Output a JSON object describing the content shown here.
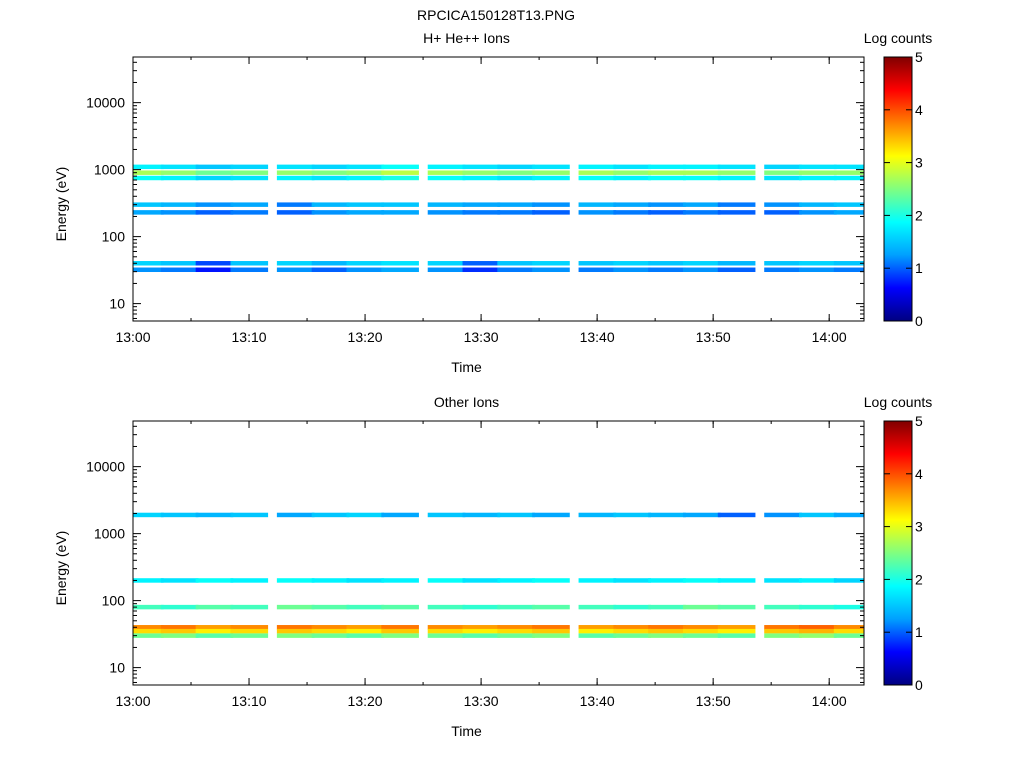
{
  "figure": {
    "title": "RPCICA150128T13.PNG"
  },
  "colormap": {
    "stops": [
      "#000080",
      "#0000ff",
      "#00a0ff",
      "#00ffff",
      "#80ff80",
      "#ffff00",
      "#ff8000",
      "#ff0000",
      "#800000"
    ]
  },
  "chart_data": [
    {
      "type": "heatmap",
      "title": "H+ He++ Ions",
      "xlabel": "Time",
      "ylabel": "Energy (eV)",
      "colorbar_label": "Log counts",
      "x_ticks": [
        "13:00",
        "13:10",
        "13:20",
        "13:30",
        "13:40",
        "13:50",
        "14:00"
      ],
      "x_range": [
        "13:00",
        "14:03"
      ],
      "y_scale": "log",
      "y_range": [
        5.5,
        48000
      ],
      "y_ticks": [
        "10",
        "100",
        "1000",
        "10000"
      ],
      "colorbar_range": [
        0,
        5
      ],
      "colorbar_ticks": [
        "0",
        "1",
        "2",
        "3",
        "4",
        "5"
      ],
      "grid": false,
      "time_bins": [
        "13:01",
        "13:04",
        "13:07",
        "13:10",
        "13:14",
        "13:17",
        "13:20",
        "13:23",
        "13:27",
        "13:30",
        "13:33",
        "13:36",
        "13:40",
        "13:43",
        "13:46",
        "13:49",
        "13:52",
        "13:56",
        "13:59",
        "14:02"
      ],
      "energy_bands_eV": [
        {
          "energy": 900,
          "log_counts": [
            2.7,
            2.6,
            2.4,
            2.5,
            2.6,
            2.5,
            2.6,
            2.8,
            2.7,
            2.6,
            2.5,
            2.6,
            2.7,
            2.6,
            2.7,
            2.7,
            2.6,
            2.5,
            2.6,
            2.6
          ]
        },
        {
          "energy": 1100,
          "log_counts": [
            1.8,
            1.7,
            1.5,
            1.6,
            1.7,
            1.6,
            1.7,
            1.9,
            1.8,
            1.7,
            1.6,
            1.7,
            1.8,
            1.7,
            1.8,
            1.8,
            1.7,
            1.6,
            1.7,
            1.7
          ]
        },
        {
          "energy": 750,
          "log_counts": [
            1.9,
            1.8,
            1.6,
            1.7,
            1.8,
            1.7,
            1.8,
            2.0,
            1.9,
            1.8,
            1.7,
            1.8,
            1.9,
            1.8,
            1.9,
            1.9,
            1.8,
            1.7,
            1.8,
            1.8
          ]
        },
        {
          "energy": 300,
          "log_counts": [
            1.5,
            1.4,
            1.2,
            1.3,
            1.1,
            1.4,
            1.5,
            1.5,
            1.4,
            1.3,
            1.3,
            1.2,
            1.4,
            1.3,
            1.2,
            1.3,
            1.1,
            1.2,
            1.4,
            1.5
          ]
        },
        {
          "energy": 230,
          "log_counts": [
            1.3,
            1.2,
            1.0,
            1.1,
            1.0,
            1.2,
            1.3,
            1.3,
            1.2,
            1.1,
            1.1,
            1.0,
            1.2,
            1.1,
            1.0,
            1.1,
            1.0,
            1.0,
            1.2,
            1.3
          ]
        },
        {
          "energy": 40,
          "log_counts": [
            1.6,
            1.5,
            0.9,
            1.5,
            1.6,
            1.4,
            1.6,
            1.7,
            1.6,
            1.0,
            1.5,
            1.6,
            1.5,
            1.6,
            1.5,
            1.6,
            1.4,
            1.5,
            1.6,
            1.5
          ]
        },
        {
          "energy": 32,
          "log_counts": [
            1.2,
            1.1,
            0.7,
            1.1,
            1.2,
            1.0,
            1.2,
            1.3,
            1.2,
            0.8,
            1.1,
            1.2,
            1.1,
            1.2,
            1.1,
            1.2,
            1.0,
            1.1,
            1.2,
            1.1
          ]
        }
      ]
    },
    {
      "type": "heatmap",
      "title": "Other Ions",
      "xlabel": "Time",
      "ylabel": "Energy (eV)",
      "colorbar_label": "Log counts",
      "x_ticks": [
        "13:00",
        "13:10",
        "13:20",
        "13:30",
        "13:40",
        "13:50",
        "14:00"
      ],
      "x_range": [
        "13:00",
        "14:03"
      ],
      "y_scale": "log",
      "y_range": [
        5.5,
        48000
      ],
      "y_ticks": [
        "10",
        "100",
        "1000",
        "10000"
      ],
      "colorbar_range": [
        0,
        5
      ],
      "colorbar_ticks": [
        "0",
        "1",
        "2",
        "3",
        "4",
        "5"
      ],
      "grid": false,
      "time_bins": [
        "13:01",
        "13:04",
        "13:07",
        "13:10",
        "13:14",
        "13:17",
        "13:20",
        "13:23",
        "13:27",
        "13:30",
        "13:33",
        "13:36",
        "13:40",
        "13:43",
        "13:46",
        "13:49",
        "13:52",
        "13:56",
        "13:59",
        "14:02"
      ],
      "energy_bands_eV": [
        {
          "energy": 40,
          "log_counts": [
            3.7,
            3.8,
            3.6,
            3.7,
            3.8,
            3.7,
            3.6,
            3.8,
            3.7,
            3.6,
            3.7,
            3.8,
            3.6,
            3.7,
            3.8,
            3.7,
            3.6,
            3.8,
            3.9,
            3.7
          ]
        },
        {
          "energy": 35,
          "log_counts": [
            3.3,
            3.4,
            3.2,
            3.3,
            3.4,
            3.3,
            3.2,
            3.4,
            3.3,
            3.2,
            3.3,
            3.4,
            3.2,
            3.3,
            3.4,
            3.3,
            3.2,
            3.4,
            3.5,
            3.3
          ]
        },
        {
          "energy": 30,
          "log_counts": [
            2.4,
            2.5,
            2.3,
            2.4,
            2.5,
            2.4,
            2.3,
            2.5,
            2.4,
            2.3,
            2.4,
            2.5,
            2.3,
            2.4,
            2.5,
            2.4,
            2.3,
            2.5,
            2.6,
            2.4
          ]
        },
        {
          "energy": 80,
          "log_counts": [
            2.2,
            2.1,
            2.3,
            2.2,
            2.4,
            2.3,
            2.2,
            2.3,
            2.2,
            2.1,
            2.2,
            2.3,
            2.2,
            2.1,
            2.2,
            2.4,
            2.3,
            2.2,
            2.1,
            2.0
          ]
        },
        {
          "energy": 200,
          "log_counts": [
            1.8,
            1.7,
            1.9,
            1.8,
            1.9,
            1.8,
            1.7,
            1.8,
            1.9,
            1.7,
            1.8,
            1.9,
            1.8,
            1.7,
            1.8,
            1.9,
            1.8,
            1.7,
            1.8,
            1.6
          ]
        },
        {
          "energy": 1900,
          "log_counts": [
            1.6,
            1.5,
            1.4,
            1.5,
            1.3,
            1.5,
            1.6,
            1.3,
            1.5,
            1.4,
            1.5,
            1.3,
            1.4,
            1.5,
            1.4,
            1.3,
            1.0,
            1.2,
            1.5,
            1.3
          ]
        }
      ]
    }
  ]
}
